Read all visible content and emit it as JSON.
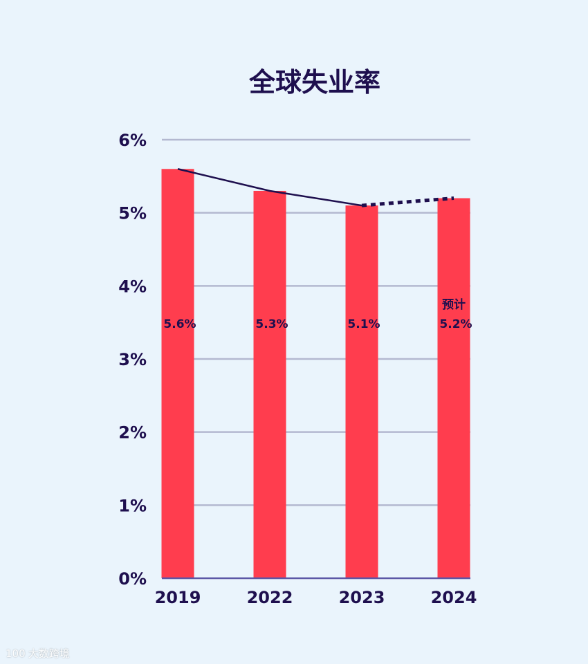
{
  "colors": {
    "background": "#eaf4fc",
    "bar": "#ff3d4e",
    "text": "#1e0f4e",
    "grid": "#b3b8d0",
    "axis": "#5c57a6",
    "trend_line": "#1e0f4e"
  },
  "chart_data": {
    "type": "bar",
    "title": "全球失业率",
    "categories": [
      "2019",
      "2022",
      "2023",
      "2024"
    ],
    "values": [
      5.6,
      5.3,
      5.1,
      5.2
    ],
    "value_labels": [
      "5.6%",
      "5.3%",
      "5.1%",
      "5.2%"
    ],
    "note_labels": [
      "",
      "",
      "",
      "预计"
    ],
    "ylim": [
      0,
      6
    ],
    "yticks": [
      0,
      1,
      2,
      3,
      4,
      5,
      6
    ],
    "ytick_labels": [
      "0%",
      "1%",
      "2%",
      "3%",
      "4%",
      "5%",
      "6%"
    ],
    "grid": true,
    "overlay_line": {
      "type": "line",
      "values": [
        5.6,
        5.3,
        5.1,
        5.2
      ],
      "solid_until_index": 2,
      "dashed_after_index": 2
    }
  },
  "watermark": {
    "logo_text": "100",
    "text": "大数跨境"
  }
}
